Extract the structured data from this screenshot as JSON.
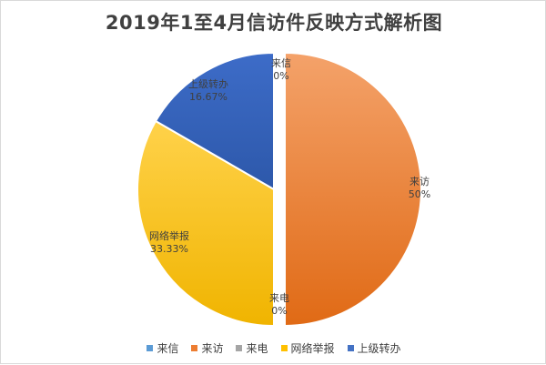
{
  "chart_data": {
    "type": "pie",
    "title": "2019年1至4月信访件反映方式解析图",
    "categories": [
      "来信",
      "来访",
      "来电",
      "网络举报",
      "上级转办"
    ],
    "values": [
      0,
      50,
      0,
      33.33,
      16.67
    ],
    "labels": [
      "0%",
      "50%",
      "0%",
      "33.33%",
      "16.67%"
    ],
    "colors": [
      "#5b9bd5",
      "#ed7d31",
      "#a5a5a5",
      "#ffc000",
      "#4472c4"
    ],
    "exploded": [
      "来访"
    ],
    "legend_position": "bottom"
  }
}
